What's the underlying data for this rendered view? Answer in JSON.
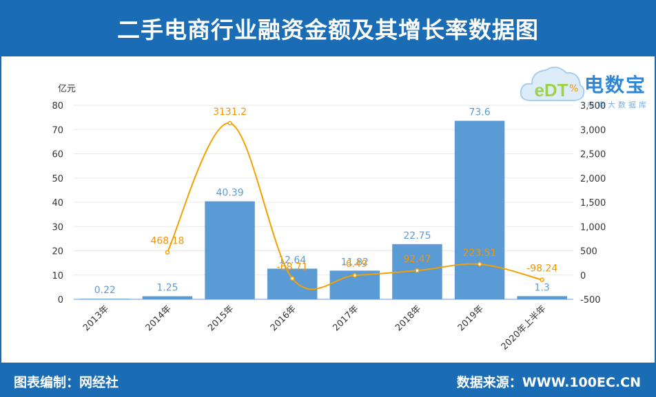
{
  "header": {
    "title": "二手电商行业融资金额及其增长率数据图"
  },
  "footer": {
    "left": "图表编制：网经社",
    "right": "数据来源：WWW.100EC.CN"
  },
  "watermark": {
    "logo_text": "eDT",
    "title": "电数宝",
    "subtitle": "电商大数据库"
  },
  "colors": {
    "bar": "#5b9bd5",
    "line": "#f5a000",
    "brand": "#1a6db4"
  },
  "chart_data": {
    "type": "bar",
    "title": "",
    "ylabel_left": "亿元",
    "ylabel_right": "%",
    "categories": [
      "2013年",
      "2014年",
      "2015年",
      "2016年",
      "2017年",
      "2018年",
      "2019年",
      "2020年上半年"
    ],
    "series": [
      {
        "type": "bar",
        "axis": "left",
        "values": [
          0.22,
          1.25,
          40.39,
          12.64,
          11.82,
          22.75,
          73.6,
          1.3
        ],
        "labels": [
          "0.22",
          "1.25",
          "40.39",
          "12.64",
          "11.82",
          "22.75",
          "73.6",
          "1.3"
        ]
      },
      {
        "type": "line",
        "axis": "right",
        "values": [
          null,
          468.18,
          3131.2,
          -68.71,
          -6.49,
          92.47,
          223.51,
          -98.24
        ],
        "labels": [
          "",
          "468.18",
          "3131.2",
          "-68.71",
          "-6.49",
          "92.47",
          "223.51",
          "-98.24"
        ]
      }
    ],
    "ylim_left": [
      0,
      80
    ],
    "yticks_left": [
      0,
      10,
      20,
      30,
      40,
      50,
      60,
      70,
      80
    ],
    "ylim_right": [
      -500,
      3500
    ],
    "yticks_right": [
      -500,
      0,
      500,
      1000,
      1500,
      2000,
      2500,
      3000,
      3500
    ],
    "yticks_right_labels": [
      "-500",
      "0",
      "500",
      "1,000",
      "1,500",
      "2,000",
      "2,500",
      "3,000",
      "3,500"
    ],
    "grid": true,
    "legend": "none"
  }
}
